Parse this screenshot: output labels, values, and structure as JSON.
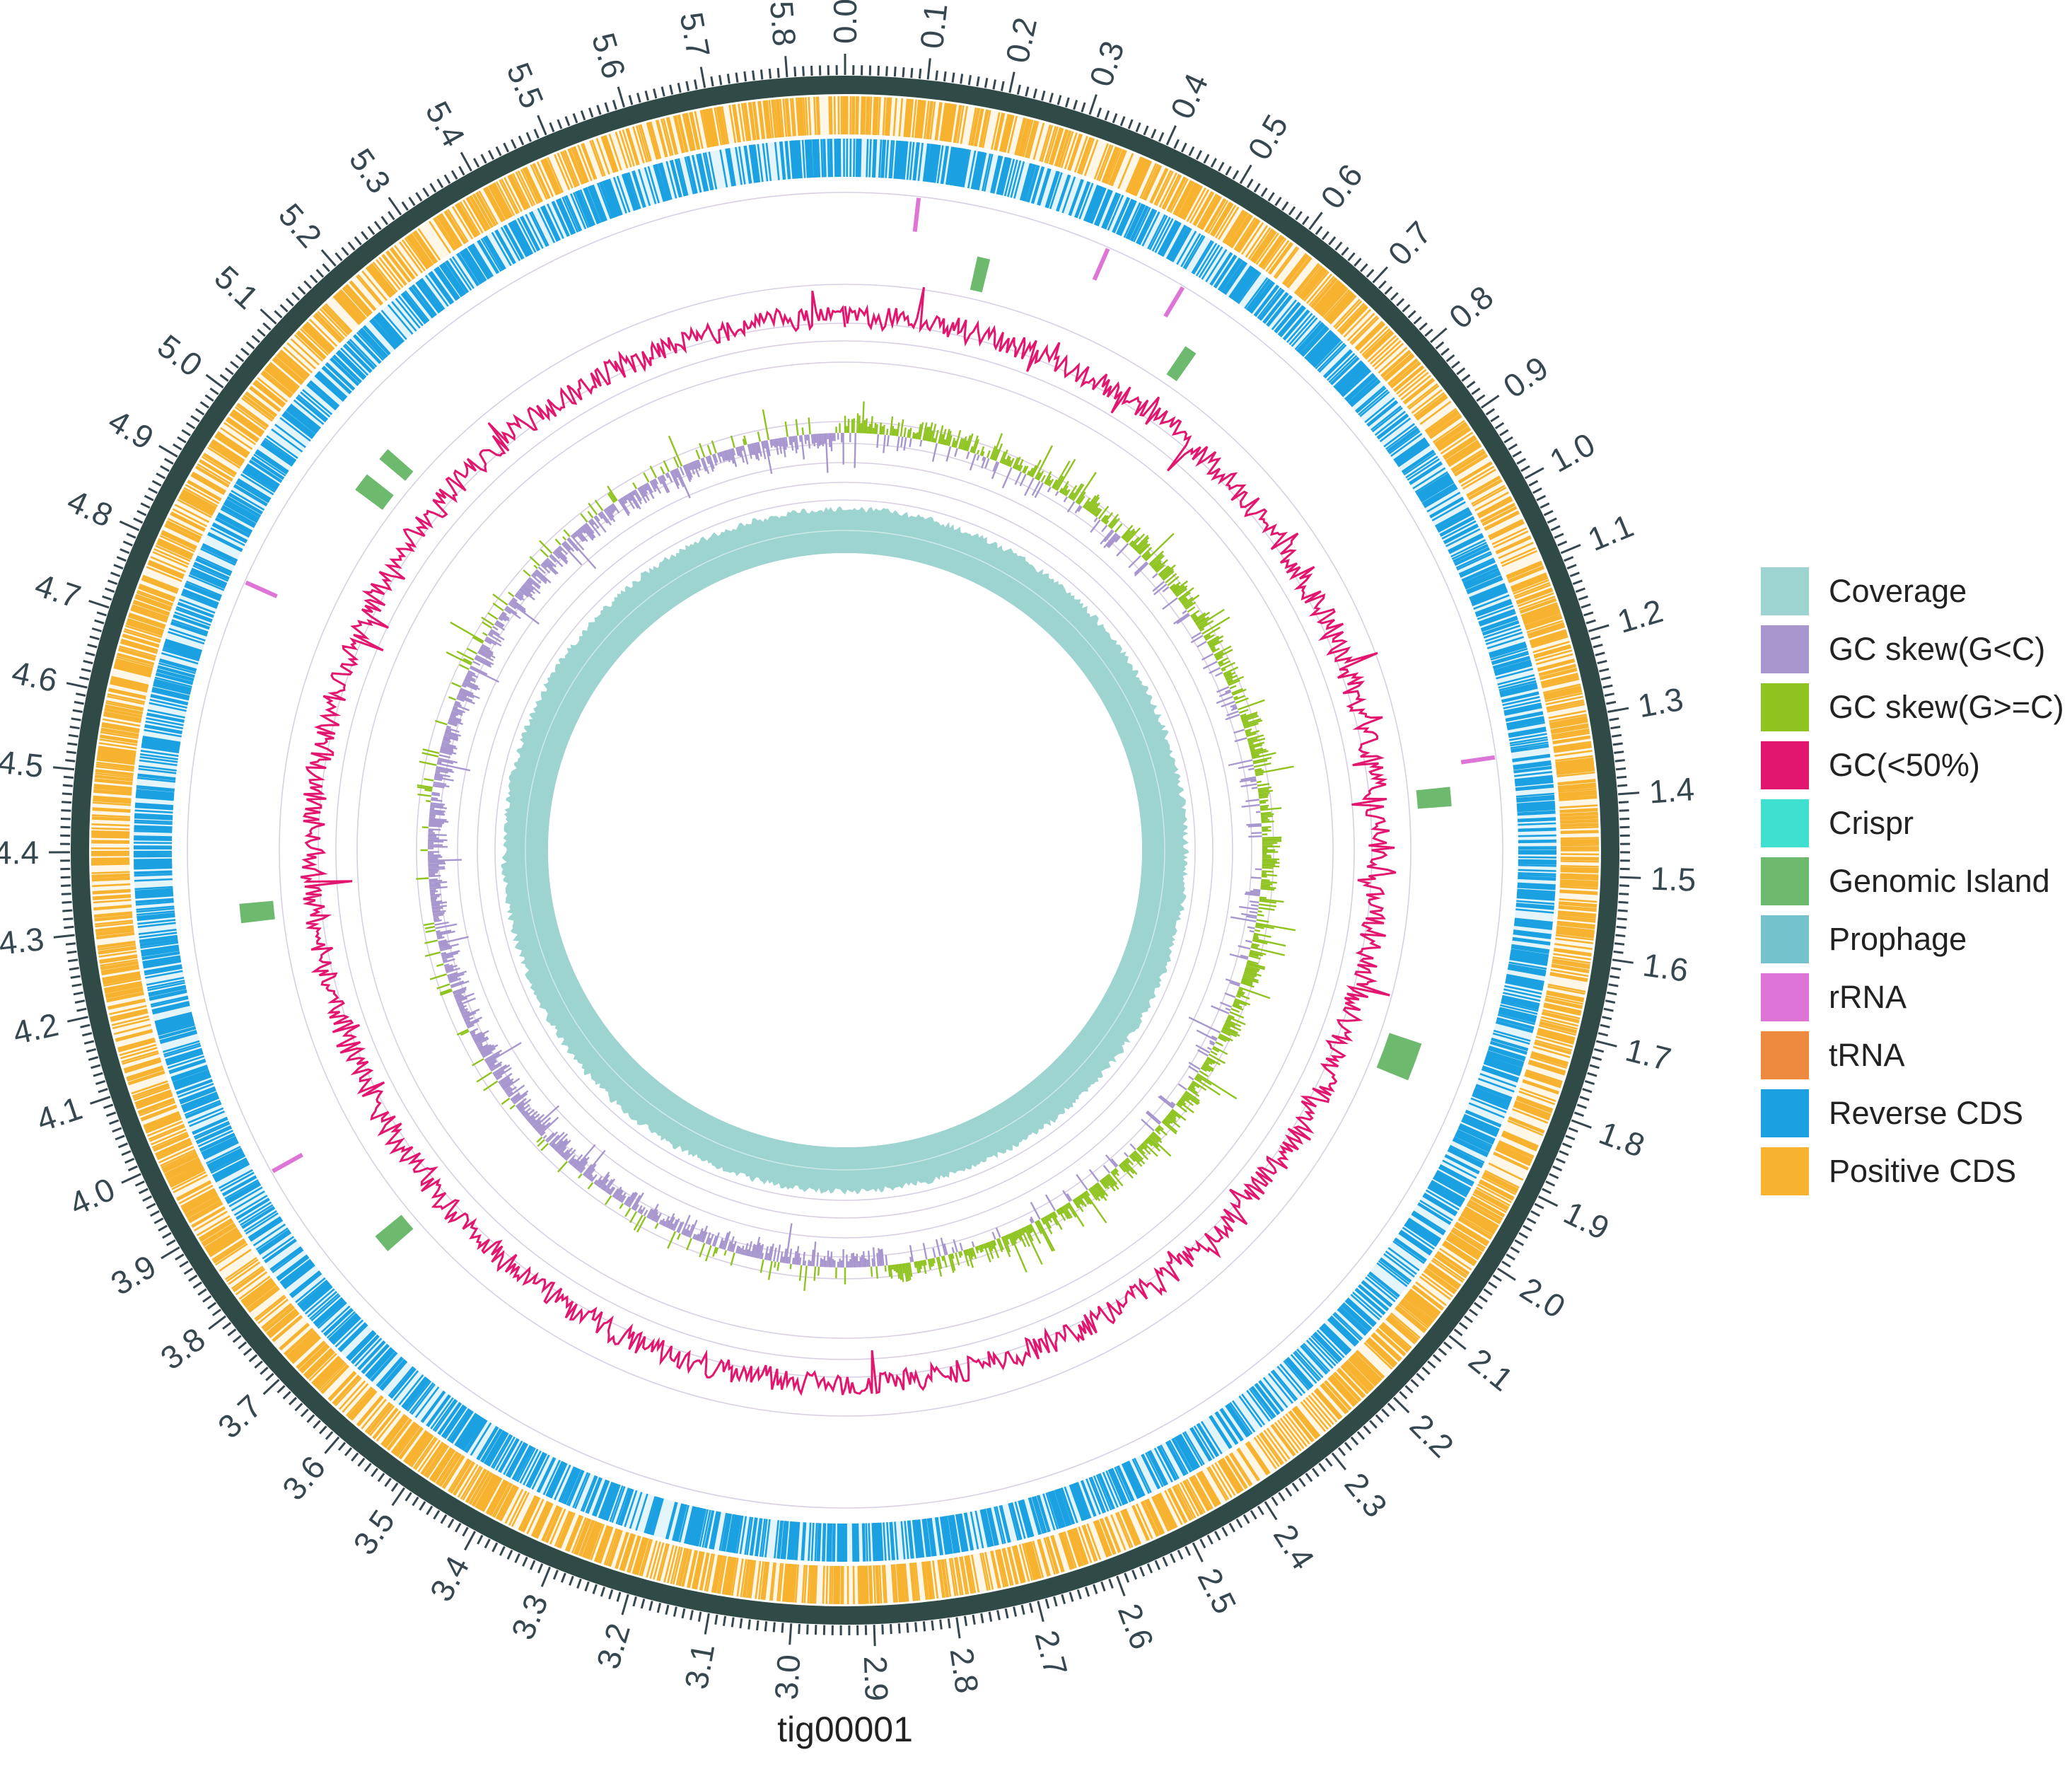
{
  "chart_data": {
    "type": "circular-genome-map",
    "contig": "tig00001",
    "axis": {
      "unit": "Mb",
      "start": 0.0,
      "end": 5.87,
      "tick_labels": [
        "0.0",
        "0.1",
        "0.2",
        "0.3",
        "0.4",
        "0.5",
        "0.6",
        "0.7",
        "0.8",
        "0.9",
        "1.0",
        "1.1",
        "1.2",
        "1.3",
        "1.4",
        "1.5",
        "1.6",
        "1.7",
        "1.8",
        "1.9",
        "2.0",
        "2.1",
        "2.2",
        "2.3",
        "2.4",
        "2.5",
        "2.6",
        "2.7",
        "2.8",
        "2.9",
        "3.0",
        "3.1",
        "3.2",
        "3.3",
        "3.4",
        "3.5",
        "3.6",
        "3.7",
        "3.8",
        "3.9",
        "4.0",
        "4.1",
        "4.2",
        "4.3",
        "4.4",
        "4.5",
        "4.6",
        "4.7",
        "4.8",
        "4.9",
        "5.0",
        "5.1",
        "5.2",
        "5.3",
        "5.4",
        "5.5",
        "5.6",
        "5.7",
        "5.8"
      ]
    },
    "tracks": {
      "rRNA_Mb": [
        0.105,
        0.385,
        0.505,
        1.335,
        3.925,
        4.795
      ],
      "genomic_islands_Mb": [
        {
          "start": 0.205,
          "end": 0.225
        },
        {
          "start": 0.555,
          "end": 0.575
        },
        {
          "start": 1.37,
          "end": 1.4
        },
        {
          "start": 1.77,
          "end": 1.83
        },
        {
          "start": 3.73,
          "end": 3.76
        },
        {
          "start": 4.29,
          "end": 4.32
        },
        {
          "start": 4.995,
          "end": 5.025
        },
        {
          "start": 5.055,
          "end": 5.075
        }
      ]
    },
    "legend_position": "right"
  },
  "legend": [
    {
      "label": "Coverage",
      "color": "#9dd4d0"
    },
    {
      "label": "GC skew(G<C)",
      "color": "#a897ce"
    },
    {
      "label": "GC skew(G>=C)",
      "color": "#8fc31f"
    },
    {
      "label": "GC(<50%)",
      "color": "#e3166f"
    },
    {
      "label": "Crispr",
      "color": "#40e0d0"
    },
    {
      "label": "Genomic Island",
      "color": "#6db96e"
    },
    {
      "label": "Prophage",
      "color": "#74c3cc"
    },
    {
      "label": "rRNA",
      "color": "#de74d6"
    },
    {
      "label": "tRNA",
      "color": "#ed8a3f"
    },
    {
      "label": "Reverse CDS",
      "color": "#1ba1e2"
    },
    {
      "label": "Positive CDS",
      "color": "#f7b22f"
    }
  ]
}
